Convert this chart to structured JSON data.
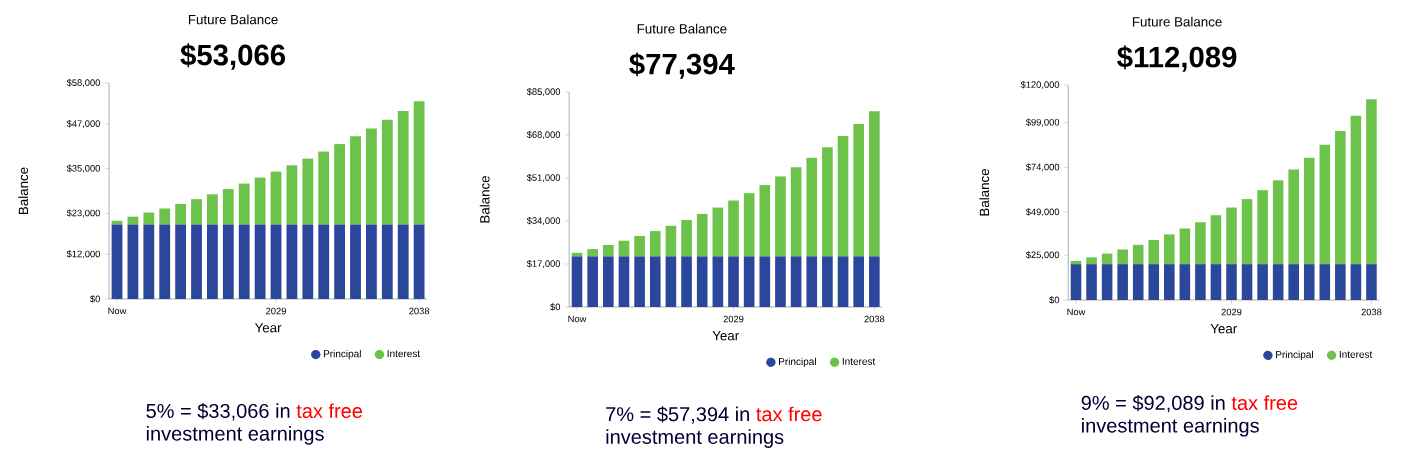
{
  "chart_data": [
    {
      "type": "bar",
      "title": "Future Balance",
      "subtitle": "$53,066",
      "xlabel": "Year",
      "ylabel": "Balance",
      "stacked": true,
      "legend": "bottom right",
      "categories": [
        "Now",
        null,
        null,
        null,
        null,
        null,
        null,
        null,
        null,
        null,
        "2029",
        null,
        null,
        null,
        null,
        null,
        null,
        null,
        null,
        "2038"
      ],
      "ylim": [
        0,
        58000
      ],
      "yticks": [
        {
          "value": 0,
          "label": "$0"
        },
        {
          "value": 12000,
          "label": "$12,000"
        },
        {
          "value": 23000,
          "label": "$23,000"
        },
        {
          "value": 35000,
          "label": "$35,000"
        },
        {
          "value": 47000,
          "label": "$47,000"
        },
        {
          "value": 58000,
          "label": "$58,000"
        }
      ],
      "series": [
        {
          "name": "Principal",
          "color": "#2b479c",
          "values": [
            20000,
            20000,
            20000,
            20000,
            20000,
            20000,
            20000,
            20000,
            20000,
            20000,
            20000,
            20000,
            20000,
            20000,
            20000,
            20000,
            20000,
            20000,
            20000,
            20000
          ]
        },
        {
          "name": "Interest",
          "color": "#6cc24a",
          "values": [
            1000,
            2100,
            3200,
            4300,
            5500,
            6800,
            8100,
            9500,
            11000,
            12600,
            14200,
            15900,
            17700,
            19600,
            21600,
            23700,
            25800,
            28100,
            30500,
            33100
          ]
        }
      ],
      "annotations": [
        "5% = $33,066 in",
        "tax free",
        "investment earnings"
      ]
    },
    {
      "type": "bar",
      "title": "Future Balance",
      "subtitle": "$77,394",
      "xlabel": "Year",
      "ylabel": "Balance",
      "stacked": true,
      "legend": "bottom right",
      "categories": [
        "Now",
        null,
        null,
        null,
        null,
        null,
        null,
        null,
        null,
        null,
        "2029",
        null,
        null,
        null,
        null,
        null,
        null,
        null,
        null,
        "2038"
      ],
      "ylim": [
        0,
        85000
      ],
      "yticks": [
        {
          "value": 0,
          "label": "$0"
        },
        {
          "value": 17000,
          "label": "$17,000"
        },
        {
          "value": 34000,
          "label": "$34,000"
        },
        {
          "value": 51000,
          "label": "$51,000"
        },
        {
          "value": 68000,
          "label": "$68,000"
        },
        {
          "value": 85000,
          "label": "$85,000"
        }
      ],
      "series": [
        {
          "name": "Principal",
          "color": "#2b479c",
          "values": [
            20000,
            20000,
            20000,
            20000,
            20000,
            20000,
            20000,
            20000,
            20000,
            20000,
            20000,
            20000,
            20000,
            20000,
            20000,
            20000,
            20000,
            20000,
            20000,
            20000
          ]
        },
        {
          "name": "Interest",
          "color": "#6cc24a",
          "values": [
            1400,
            2900,
            4500,
            6200,
            8100,
            10000,
            12100,
            14400,
            16800,
            19300,
            22100,
            25000,
            28200,
            31600,
            35200,
            39000,
            43200,
            47600,
            52300,
            57400
          ]
        }
      ],
      "annotations": [
        "7% = $57,394 in",
        "tax free",
        "investment earnings"
      ]
    },
    {
      "type": "bar",
      "title": "Future Balance",
      "subtitle": "$112,089",
      "xlabel": "Year",
      "ylabel": "Balance",
      "stacked": true,
      "legend": "bottom right",
      "categories": [
        "Now",
        null,
        null,
        null,
        null,
        null,
        null,
        null,
        null,
        null,
        "2029",
        null,
        null,
        null,
        null,
        null,
        null,
        null,
        null,
        "2038"
      ],
      "ylim": [
        0,
        120000
      ],
      "yticks": [
        {
          "value": 0,
          "label": "$0"
        },
        {
          "value": 25000,
          "label": "$25,000"
        },
        {
          "value": 49000,
          "label": "$49,000"
        },
        {
          "value": 74000,
          "label": "$74,000"
        },
        {
          "value": 99000,
          "label": "$99,000"
        },
        {
          "value": 120000,
          "label": "$120,000"
        }
      ],
      "series": [
        {
          "name": "Principal",
          "color": "#2b479c",
          "values": [
            20000,
            20000,
            20000,
            20000,
            20000,
            20000,
            20000,
            20000,
            20000,
            20000,
            20000,
            20000,
            20000,
            20000,
            20000,
            20000,
            20000,
            20000,
            20000,
            20000
          ]
        },
        {
          "name": "Interest",
          "color": "#6cc24a",
          "values": [
            1800,
            3800,
            5900,
            8200,
            10800,
            13500,
            16600,
            19900,
            23400,
            27300,
            31600,
            36300,
            41300,
            46800,
            52900,
            59400,
            66600,
            74300,
            82800,
            92100
          ]
        }
      ],
      "annotations": [
        "9% = $92,089 in",
        "tax free",
        "investment earnings"
      ]
    }
  ]
}
